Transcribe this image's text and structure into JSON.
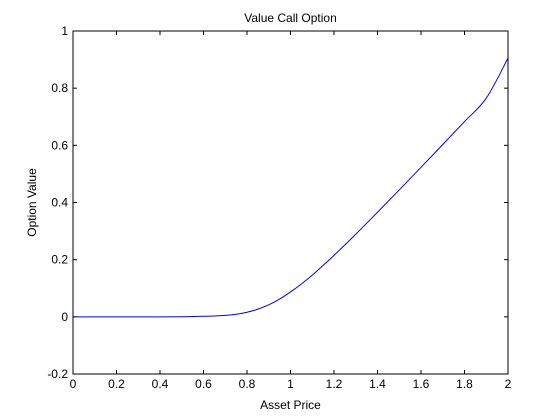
{
  "chart_data": {
    "type": "line",
    "title": "Value Call Option",
    "xlabel": "Asset Price",
    "ylabel": "Option Value",
    "xlim": [
      0,
      2
    ],
    "ylim": [
      -0.2,
      1
    ],
    "x_ticks": [
      0,
      0.2,
      0.4,
      0.6,
      0.8,
      1,
      1.2,
      1.4,
      1.6,
      1.8,
      2
    ],
    "x_tick_labels": [
      "0",
      "0.2",
      "0.4",
      "0.6",
      "0.8",
      "1",
      "1.2",
      "1.4",
      "1.6",
      "1.8",
      "2"
    ],
    "y_ticks": [
      -0.2,
      0,
      0.2,
      0.4,
      0.6,
      0.8,
      1
    ],
    "y_tick_labels": [
      "-0.2",
      "0",
      "0.2",
      "0.4",
      "0.6",
      "0.8",
      "1"
    ],
    "grid": false,
    "line_color": "#0000ff",
    "series": [
      {
        "x": [
          0,
          0.1,
          0.2,
          0.3,
          0.4,
          0.5,
          0.6,
          0.65,
          0.7,
          0.75,
          0.8,
          0.85,
          0.9,
          0.95,
          1.0,
          1.05,
          1.1,
          1.15,
          1.2,
          1.3,
          1.4,
          1.5,
          1.6,
          1.7,
          1.8,
          1.9,
          2.0
        ],
        "values": [
          0,
          0,
          0,
          0,
          0,
          0.0005,
          0.002,
          0.003,
          0.005,
          0.009,
          0.016,
          0.027,
          0.042,
          0.062,
          0.087,
          0.115,
          0.146,
          0.18,
          0.215,
          0.289,
          0.366,
          0.444,
          0.523,
          0.603,
          0.683,
          0.765,
          0.905
        ]
      }
    ]
  }
}
